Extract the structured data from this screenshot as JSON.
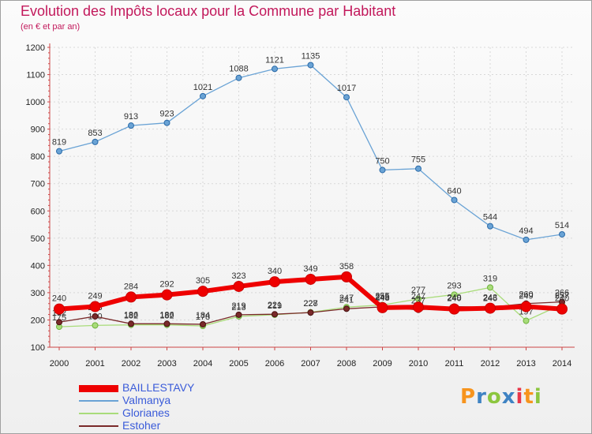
{
  "header": {
    "title": "Evolution des Impôts locaux pour la Commune par Habitant",
    "subtitle": "(en € et par an)"
  },
  "brand": {
    "letters": [
      "P",
      "r",
      "o",
      "x",
      "i",
      "t",
      "i"
    ],
    "colors": [
      "#f7941d",
      "#3f83c3",
      "#8cc63f",
      "#3f83c3",
      "#e8374a",
      "#f7941d",
      "#8cc63f"
    ]
  },
  "chart_data": {
    "type": "line",
    "title": "Evolution des Impôts locaux pour la Commune par Habitant",
    "subtitle": "(en € et par an)",
    "xlabel": "",
    "ylabel": "",
    "x": [
      "2000",
      "2001",
      "2002",
      "2003",
      "2004",
      "2005",
      "2006",
      "2007",
      "2008",
      "2009",
      "2010",
      "2011",
      "2012",
      "2013",
      "2014"
    ],
    "ylim": [
      100,
      1200
    ],
    "yticks": [
      100,
      200,
      300,
      400,
      500,
      600,
      700,
      800,
      900,
      1000,
      1100,
      1200
    ],
    "legend_position": "bottom-left",
    "series": [
      {
        "name": "BAILLESTAVY",
        "color": "#ee0000",
        "highlight": true,
        "values": [
          240,
          249,
          284,
          292,
          305,
          323,
          340,
          349,
          358,
          245,
          247,
          240,
          243,
          249,
          240
        ]
      },
      {
        "name": "Valmanya",
        "color": "#6aa3d5",
        "values": [
          819,
          853,
          913,
          923,
          1021,
          1088,
          1121,
          1135,
          1017,
          750,
          755,
          640,
          544,
          494,
          514
        ]
      },
      {
        "name": "Glorianes",
        "color": "#a9dc7a",
        "values": [
          175,
          180,
          182,
          182,
          178,
          213,
          219,
          228,
          247,
          255,
          277,
          293,
          319,
          197,
          257
        ]
      },
      {
        "name": "Estoher",
        "color": "#7a2a2a",
        "values": [
          192,
          213,
          186,
          186,
          184,
          219,
          221,
          227,
          241,
          248,
          237,
          249,
          246,
          260,
          266
        ]
      }
    ]
  }
}
